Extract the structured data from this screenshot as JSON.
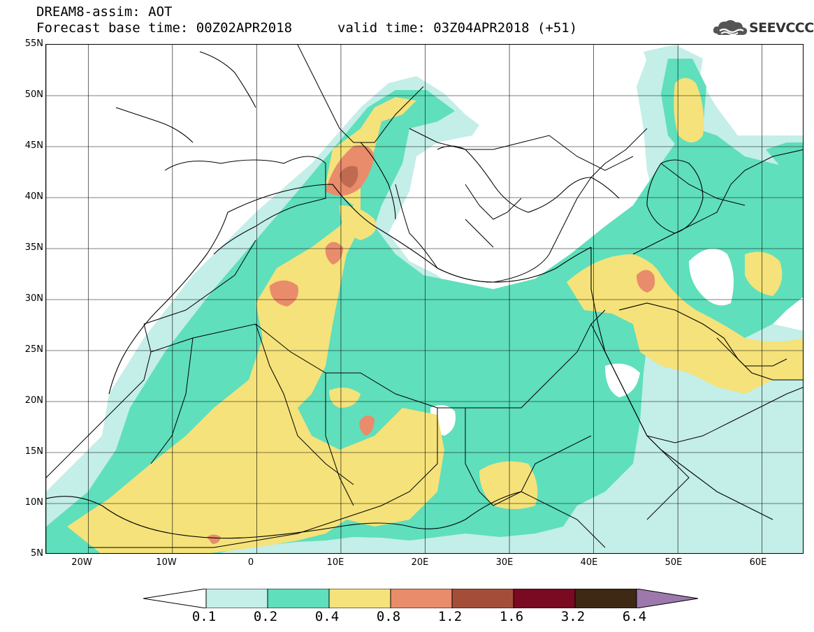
{
  "header": {
    "title": "DREAM8-assim: AOT",
    "base_time": "Forecast base time: 00Z02APR2018",
    "valid_time": "valid time: 03Z04APR2018 (+51)"
  },
  "logo": {
    "text": "SEEVCCC",
    "icon": "cloud-icon"
  },
  "map": {
    "lat_labels": [
      "55N",
      "50N",
      "45N",
      "40N",
      "35N",
      "30N",
      "25N",
      "20N",
      "15N",
      "10N",
      "5N"
    ],
    "lon_labels": [
      "20W",
      "10W",
      "0",
      "10E",
      "20E",
      "30E",
      "40E",
      "50E",
      "60E"
    ]
  },
  "legend": {
    "labels": [
      "0.1",
      "0.2",
      "0.4",
      "0.8",
      "1.2",
      "1.6",
      "3.2",
      "6.4"
    ],
    "colors": [
      "#c4eee8",
      "#5fdfbc",
      "#f5e27a",
      "#e98c6b",
      "#a44e39",
      "#7a0a22",
      "#3d2914",
      "#9c78ad"
    ]
  },
  "colors": {
    "aot_0_1": "#c4eee8",
    "aot_0_2": "#5fdfbc",
    "aot_0_4": "#f5e27a",
    "aot_0_8": "#e98c6b",
    "aot_1_2": "#a44e39"
  }
}
